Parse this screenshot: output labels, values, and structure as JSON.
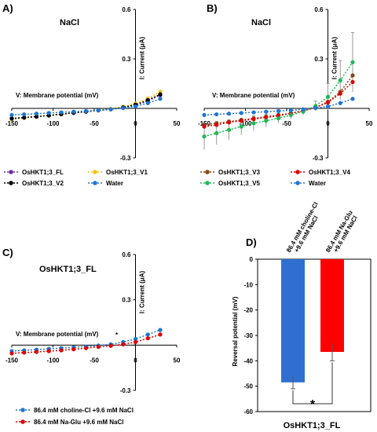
{
  "chart_data": [
    {
      "panel": "A)",
      "title": "NaCl",
      "type": "line",
      "xlabel": "V: Membrane potential (mV)",
      "ylabel": "I: Current (μA)",
      "xlim": [
        -150,
        50
      ],
      "ylim": [
        -0.3,
        0.6
      ],
      "xticks": [
        "-150",
        "-100",
        "-50",
        "0",
        "50"
      ],
      "yticks": [
        "0.6",
        "0.3",
        "-0.3"
      ],
      "x": [
        -150,
        -135,
        -120,
        -105,
        -90,
        -75,
        -60,
        -45,
        -30,
        -15,
        0,
        15,
        30
      ],
      "series": [
        {
          "name": "OsHKT1;3_FL",
          "color": "#7030a0",
          "values": [
            -0.06,
            -0.055,
            -0.05,
            -0.043,
            -0.035,
            -0.027,
            -0.02,
            -0.012,
            -0.005,
            0.005,
            0.02,
            0.045,
            0.08
          ]
        },
        {
          "name": "OsHKT1;3_V1",
          "color": "#f4c20d",
          "values": [
            -0.065,
            -0.058,
            -0.05,
            -0.043,
            -0.035,
            -0.027,
            -0.02,
            -0.012,
            -0.004,
            0.01,
            0.03,
            0.06,
            0.1
          ]
        },
        {
          "name": "OsHKT1;3_V2",
          "color": "#000000",
          "values": [
            -0.062,
            -0.056,
            -0.05,
            -0.043,
            -0.035,
            -0.027,
            -0.02,
            -0.012,
            -0.005,
            0.006,
            0.022,
            0.05,
            0.085
          ]
        },
        {
          "name": "Water",
          "color": "#1f77d0",
          "values": [
            -0.04,
            -0.036,
            -0.032,
            -0.028,
            -0.024,
            -0.02,
            -0.016,
            -0.012,
            -0.006,
            0.002,
            0.012,
            0.032,
            0.058
          ]
        }
      ],
      "errors": null,
      "legend": "bottom"
    },
    {
      "panel": "B)",
      "title": "NaCl",
      "type": "line",
      "xlabel": "V: Membrane potential (mV)",
      "ylabel": "I: Current (μA)",
      "xlim": [
        -150,
        50
      ],
      "ylim": [
        -0.3,
        0.6
      ],
      "xticks": [
        "-150",
        "-100",
        "-50",
        "0",
        "50"
      ],
      "yticks": [
        "0.6",
        "0.3",
        "-0.3"
      ],
      "x": [
        -150,
        -135,
        -120,
        -105,
        -90,
        -75,
        -60,
        -45,
        -30,
        -15,
        0,
        15,
        30
      ],
      "series": [
        {
          "name": "OsHKT1;3_V3",
          "color": "#8b4513",
          "values": [
            -0.1,
            -0.09,
            -0.08,
            -0.07,
            -0.06,
            -0.05,
            -0.04,
            -0.03,
            -0.015,
            0.005,
            0.04,
            0.1,
            0.2
          ]
        },
        {
          "name": "OsHKT1;3_V4",
          "color": "#e00000",
          "values": [
            -0.11,
            -0.1,
            -0.085,
            -0.075,
            -0.065,
            -0.055,
            -0.045,
            -0.03,
            -0.015,
            0.005,
            0.035,
            0.09,
            0.16
          ]
        },
        {
          "name": "OsHKT1;3_V5",
          "color": "#1db954",
          "values": [
            -0.17,
            -0.15,
            -0.13,
            -0.11,
            -0.09,
            -0.075,
            -0.06,
            -0.04,
            -0.02,
            0.015,
            0.07,
            0.17,
            0.28
          ]
        },
        {
          "name": "Water",
          "color": "#1f77d0",
          "values": [
            -0.04,
            -0.036,
            -0.032,
            -0.028,
            -0.024,
            -0.02,
            -0.016,
            -0.012,
            -0.006,
            0.002,
            0.012,
            0.032,
            0.058
          ]
        }
      ],
      "errors": {
        "series_index": 2,
        "values": [
          0.08,
          0.07,
          0.06,
          0.05,
          0.045,
          0.04,
          0.03,
          0.025,
          0.02,
          0.03,
          0.08,
          0.12,
          0.18
        ]
      },
      "legend": "bottom"
    },
    {
      "panel": "C)",
      "title": "OsHKT1;3_FL",
      "type": "line",
      "xlabel": "V: Membrane potential (mV)",
      "annotation": "*",
      "ylabel": "I: Current (μA)",
      "xlim": [
        -150,
        50
      ],
      "ylim": [
        -0.3,
        0.6
      ],
      "xticks": [
        "-150",
        "-100",
        "-50",
        "0",
        "50"
      ],
      "yticks": [
        "0.6",
        "0.3",
        "-0.3"
      ],
      "x": [
        -150,
        -135,
        -120,
        -105,
        -90,
        -75,
        -60,
        -45,
        -30,
        -15,
        0,
        15,
        30
      ],
      "series": [
        {
          "name": "86.4 mM choline-Cl +9.6 mM NaCl",
          "color": "#1f77d0",
          "values": [
            -0.04,
            -0.035,
            -0.03,
            -0.025,
            -0.02,
            -0.015,
            -0.01,
            -0.003,
            0.005,
            0.02,
            0.04,
            0.07,
            0.1
          ]
        },
        {
          "name": "86.4 mM Na-Glu +9.6 mM NaCl",
          "color": "#e00000",
          "values": [
            -0.055,
            -0.05,
            -0.045,
            -0.04,
            -0.035,
            -0.028,
            -0.02,
            -0.012,
            -0.005,
            0.005,
            0.02,
            0.045,
            0.07
          ]
        }
      ],
      "errors": null,
      "legend": "bottom"
    },
    {
      "panel": "D)",
      "type": "bar",
      "categories": [
        "86.4 mM choline-Cl\n+9.6 mM NaCl",
        "86.4 mM Na-Glu\n+9.6 mM NaCl"
      ],
      "values": [
        -48.5,
        -36.5
      ],
      "errors": [
        2.5,
        3.5
      ],
      "colors": [
        "#2f6fd1",
        "#ff0000"
      ],
      "ylabel": "Reversal potential (mV)",
      "xlabel": "OsHKT1;3_FL",
      "ylim": [
        -60,
        0
      ],
      "yticks": [
        "0",
        "-10",
        "-20",
        "-30",
        "-40",
        "-50",
        "-60"
      ],
      "significance": "*"
    }
  ]
}
